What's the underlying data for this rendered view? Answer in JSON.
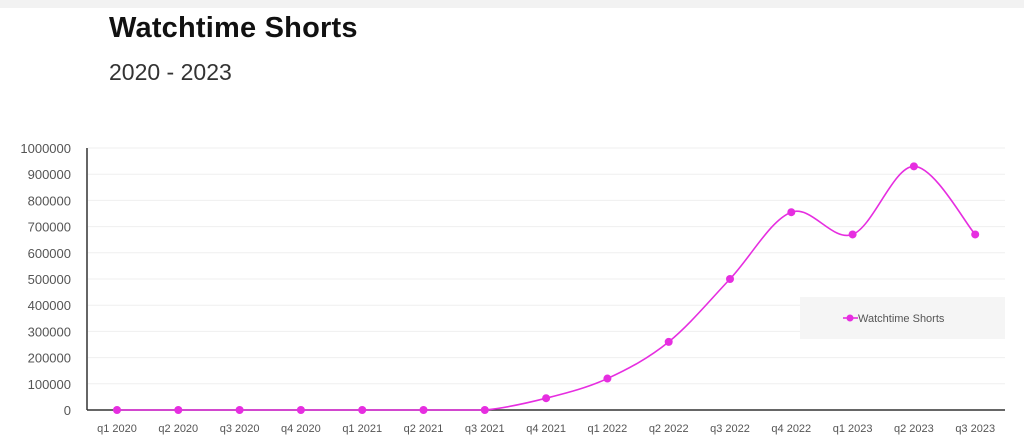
{
  "chart_data": {
    "type": "line",
    "title": "Watchtime Shorts",
    "subtitle": "2020 - 2023",
    "xlabel": "",
    "ylabel": "",
    "categories": [
      "q1 2020",
      "q2 2020",
      "q3 2020",
      "q4 2020",
      "q1 2021",
      "q2 2021",
      "q3 2021",
      "q4 2021",
      "q1 2022",
      "q2 2022",
      "q3 2022",
      "q4 2022",
      "q1 2023",
      "q2 2023",
      "q3 2023"
    ],
    "series": [
      {
        "name": "Watchtime Shorts",
        "color": "#e62ee0",
        "values": [
          0,
          0,
          0,
          0,
          0,
          0,
          0,
          45000,
          120000,
          260000,
          500000,
          755000,
          670000,
          930000,
          670000
        ]
      }
    ],
    "ylim": [
      0,
      1000000
    ],
    "yticks": [
      "0",
      "100000",
      "200000",
      "300000",
      "400000",
      "500000",
      "600000",
      "700000",
      "800000",
      "900000",
      "1000000"
    ],
    "grid": true,
    "smooth": true,
    "legend_position": "right"
  }
}
